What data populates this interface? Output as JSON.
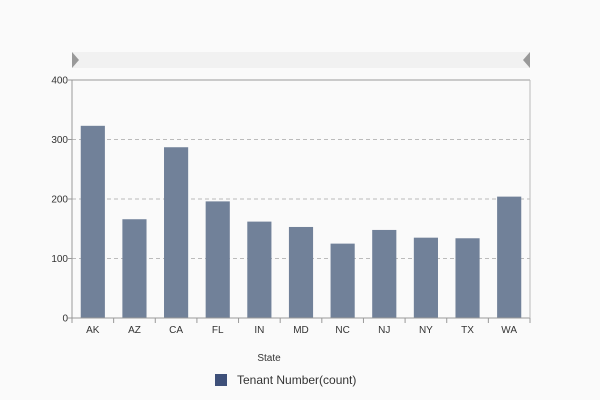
{
  "chart_data": {
    "type": "bar",
    "categories": [
      "AK",
      "AZ",
      "CA",
      "FL",
      "IN",
      "MD",
      "NC",
      "NJ",
      "NY",
      "TX",
      "WA"
    ],
    "series": [
      {
        "name": "Tenant Number(count)",
        "values": [
          323,
          166,
          287,
          196,
          162,
          153,
          125,
          148,
          135,
          134,
          204
        ],
        "color": "#718199"
      }
    ],
    "xlabel": "State",
    "ylabel": "",
    "ylim": [
      0,
      400
    ],
    "yticks": [
      "0",
      "100",
      "200",
      "300",
      "400"
    ],
    "grid": true,
    "legend_position": "bottom",
    "legend_swatch_color": "#3e5079",
    "scrollbar": "top"
  }
}
